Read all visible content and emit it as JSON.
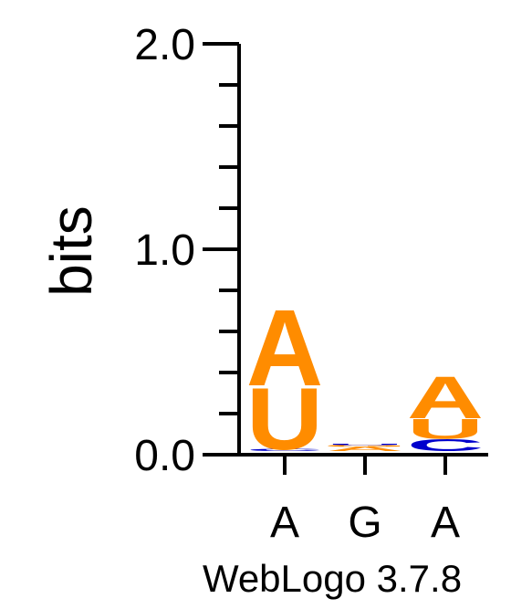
{
  "chart_data": {
    "type": "sequence-logo",
    "ylabel": "bits",
    "ylim": [
      0,
      2.0
    ],
    "yticks_labeled": [
      "0.0",
      "1.0",
      "2.0"
    ],
    "y_minor_step": 0.2,
    "positions": [
      {
        "label": "A",
        "stack": [
          {
            "letter": "C",
            "bits": 0.01,
            "color": "#0000cc"
          },
          {
            "letter": "U",
            "bits": 0.31,
            "color": "#ff8c00"
          },
          {
            "letter": "A",
            "bits": 0.38,
            "color": "#ff8c00"
          }
        ]
      },
      {
        "label": "G",
        "stack": [
          {
            "letter": "A",
            "bits": 0.02,
            "color": "#ff8c00"
          },
          {
            "letter": "G",
            "bits": 0.01,
            "color": "#ff8c00"
          },
          {
            "letter": "U",
            "bits": 0.005,
            "color": "#0000cc"
          }
        ]
      },
      {
        "label": "A",
        "stack": [
          {
            "letter": "C",
            "bits": 0.06,
            "color": "#0000cc"
          },
          {
            "letter": "U",
            "bits": 0.1,
            "color": "#ff8c00"
          },
          {
            "letter": "A",
            "bits": 0.21,
            "color": "#ff8c00"
          }
        ]
      }
    ]
  },
  "credit": "WebLogo 3.7.8"
}
